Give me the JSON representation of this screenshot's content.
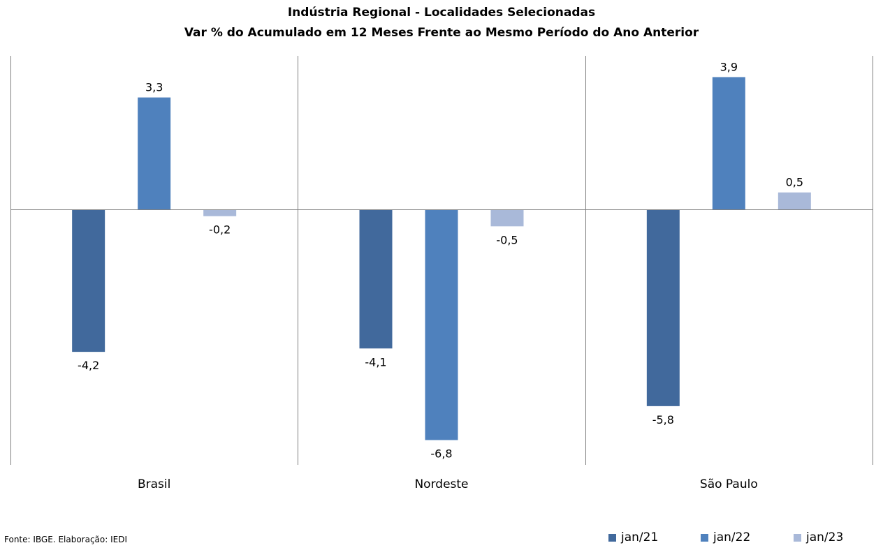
{
  "chart_data": {
    "type": "bar",
    "title": "Indústria Regional - Localidades Selecionadas",
    "subtitle": "Var % do Acumulado em 12 Meses Frente ao Mesmo Período do Ano Anterior",
    "categories": [
      "Brasil",
      "Nordeste",
      "São Paulo"
    ],
    "series": [
      {
        "name": "jan/21",
        "color": "#41699C",
        "values": [
          -4.2,
          -4.1,
          -5.8
        ],
        "labels": [
          "-4,2",
          "-4,1",
          "-5,8"
        ]
      },
      {
        "name": "jan/22",
        "color": "#4F81BD",
        "values": [
          3.3,
          -6.8,
          3.9
        ],
        "labels": [
          "3,3",
          "-6,8",
          "3,9"
        ]
      },
      {
        "name": "jan/23",
        "color": "#A9B9D9",
        "values": [
          -0.2,
          -0.5,
          0.5
        ],
        "labels": [
          "-0,2",
          "-0,5",
          "0,5"
        ]
      }
    ],
    "ylim": [
      -7.5,
      4.5
    ],
    "grid": false,
    "legend_position": "bottom-right",
    "source": "Fonte: IBGE. Elaboração: IEDI"
  }
}
